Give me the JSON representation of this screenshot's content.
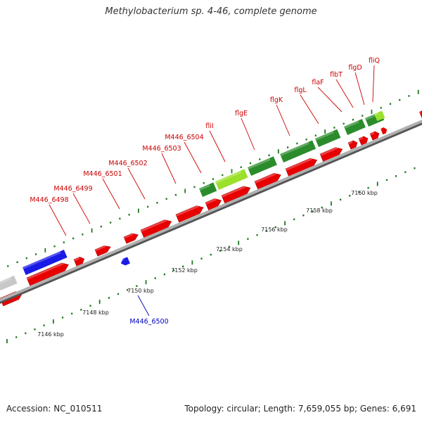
{
  "title": "Methylobacterium sp. 4-46, complete genome",
  "footer": {
    "accession": "Accession: NC_010511",
    "summary": "Topology: circular; Length: 7,659,055 bp; Genes: 6,691"
  },
  "colors": {
    "forward_gene": "#e80000",
    "reverse_gene": "#1a1ae6",
    "flagellar_gene": "#2b8c2b",
    "highlight_gene": "#9be02a",
    "other_gene": "#c8c8c8",
    "backbone": "#8c8c8c",
    "tick": "#1e7a1e",
    "label_red": "#cc0000",
    "label_blue": "#0000bb"
  },
  "scale_labels": [
    {
      "text": "7146 kbp",
      "kbp": 7146
    },
    {
      "text": "7148 kbp",
      "kbp": 7148
    },
    {
      "text": "7150 kbp",
      "kbp": 7150
    },
    {
      "text": "7152 kbp",
      "kbp": 7152
    },
    {
      "text": "7154 kbp",
      "kbp": 7154
    },
    {
      "text": "7156 kbp",
      "kbp": 7156
    },
    {
      "text": "7158 kbp",
      "kbp": 7158
    },
    {
      "text": "7160 kbp",
      "kbp": 7160
    }
  ],
  "gene_labels": [
    {
      "text": "M446_6498",
      "strand": "forward"
    },
    {
      "text": "M446_6499",
      "strand": "forward"
    },
    {
      "text": "M446_6501",
      "strand": "forward"
    },
    {
      "text": "M446_6502",
      "strand": "forward"
    },
    {
      "text": "M446_6503",
      "strand": "forward"
    },
    {
      "text": "M446_6504",
      "strand": "forward"
    },
    {
      "text": "fliI",
      "strand": "forward"
    },
    {
      "text": "flgE",
      "strand": "forward"
    },
    {
      "text": "flgK",
      "strand": "forward"
    },
    {
      "text": "flgL",
      "strand": "forward"
    },
    {
      "text": "flaF",
      "strand": "forward"
    },
    {
      "text": "flbT",
      "strand": "forward"
    },
    {
      "text": "flgD",
      "strand": "forward"
    },
    {
      "text": "fliQ",
      "strand": "forward"
    },
    {
      "text": "M446_6500",
      "strand": "reverse"
    }
  ]
}
